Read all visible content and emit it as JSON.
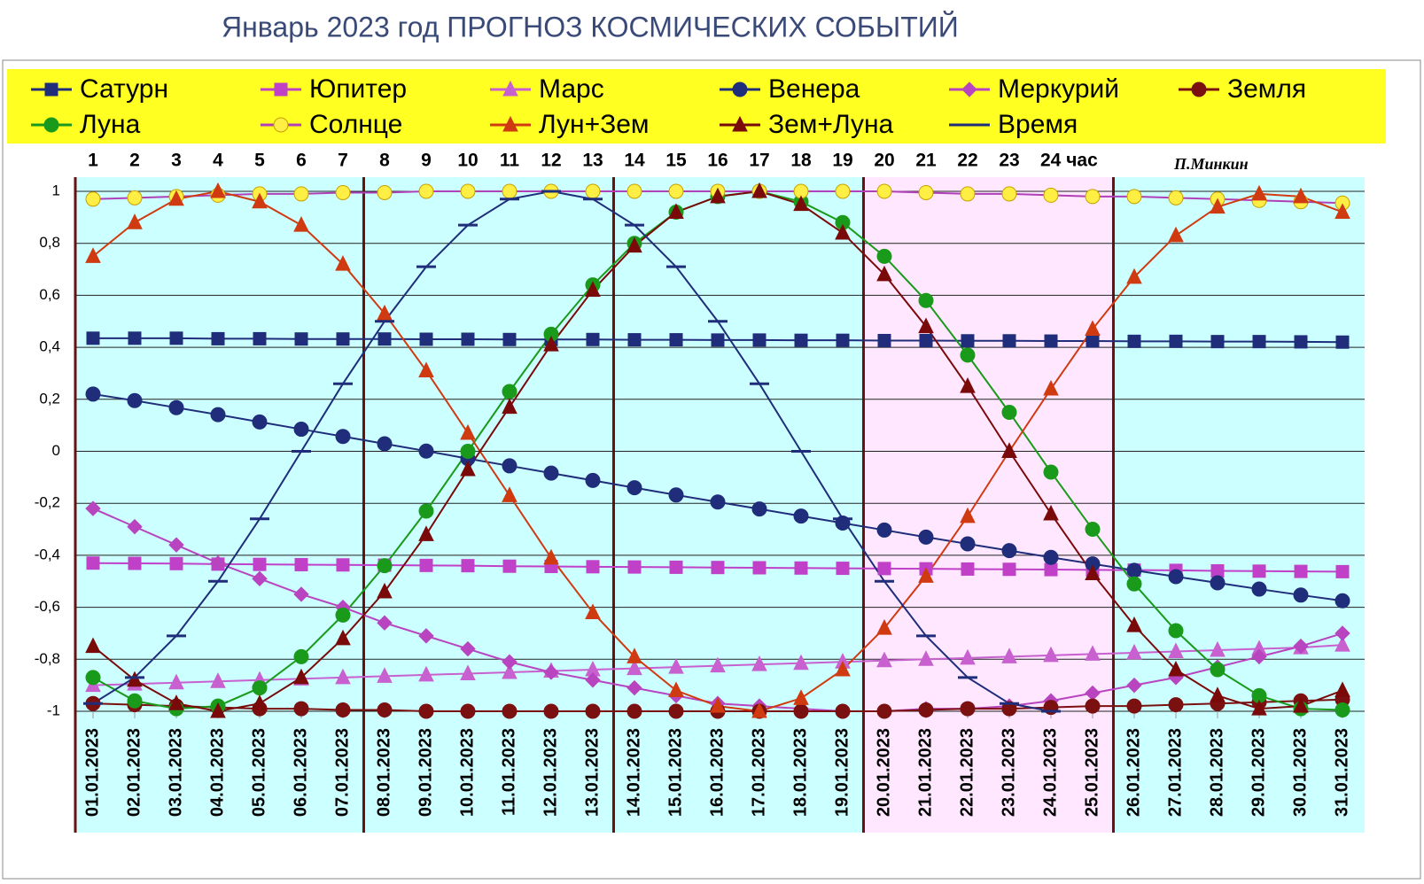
{
  "chart_data": {
    "type": "line",
    "title": "Январь 2023 год ПРОГНОЗ КОСМИЧЕСКИХ СОБЫТИЙ",
    "author": "П.Минкин",
    "hours": [
      "1",
      "2",
      "3",
      "4",
      "5",
      "6",
      "7",
      "8",
      "9",
      "10",
      "11",
      "12",
      "13",
      "14",
      "15",
      "16",
      "17",
      "18",
      "19",
      "20",
      "21",
      "22",
      "23",
      "24 час"
    ],
    "categories": [
      "01.01.2023",
      "02.01.2023",
      "03.01.2023",
      "04.01.2023",
      "05.01.2023",
      "06.01.2023",
      "07.01.2023",
      "08.01.2023",
      "09.01.2023",
      "10.01.2023",
      "11.01.2023",
      "12.01.2023",
      "13.01.2023",
      "14.01.2023",
      "15.01.2023",
      "16.01.2023",
      "17.01.2023",
      "18.01.2023",
      "19.01.2023",
      "20.01.2023",
      "21.01.2023",
      "22.01.2023",
      "23.01.2023",
      "24.01.2023",
      "25.01.2023",
      "26.01.2023",
      "27.01.2023",
      "28.01.2023",
      "29.01.2023",
      "30.01.2023",
      "31.01.2023"
    ],
    "ylim": [
      -1,
      1
    ],
    "yticks": [
      -1,
      {
        "value": -0.8,
        "label": "-0,8"
      },
      {
        "value": -0.6,
        "label": "-0,6"
      },
      {
        "value": -0.4,
        "label": "-0,4"
      },
      {
        "value": -0.2,
        "label": "-0,2"
      },
      0,
      {
        "value": 0.2,
        "label": "0,2"
      },
      {
        "value": 0.4,
        "label": "0,4"
      },
      {
        "value": 0.6,
        "label": "0,6"
      },
      {
        "value": 0.8,
        "label": "0,8"
      },
      1
    ],
    "grid": true,
    "series": [
      {
        "name": "Сатурн",
        "color": "#1f2d7a",
        "marker": "square",
        "values": [
          0.435,
          0.435,
          0.435,
          0.433,
          0.433,
          0.432,
          0.432,
          0.432,
          0.431,
          0.431,
          0.43,
          0.43,
          0.43,
          0.429,
          0.429,
          0.428,
          0.428,
          0.427,
          0.427,
          0.426,
          0.426,
          0.425,
          0.425,
          0.424,
          0.424,
          0.423,
          0.423,
          0.422,
          0.422,
          0.421,
          0.42
        ]
      },
      {
        "name": "Юпитер",
        "color": "#c040c8",
        "marker": "square",
        "values": [
          -0.43,
          -0.431,
          -0.432,
          -0.434,
          -0.435,
          -0.436,
          -0.437,
          -0.438,
          -0.439,
          -0.44,
          -0.442,
          -0.443,
          -0.444,
          -0.445,
          -0.446,
          -0.447,
          -0.448,
          -0.449,
          -0.45,
          -0.451,
          -0.452,
          -0.453,
          -0.454,
          -0.455,
          -0.456,
          -0.457,
          -0.458,
          -0.46,
          -0.461,
          -0.462,
          -0.463
        ]
      },
      {
        "name": "Марс",
        "color": "#c860d0",
        "marker": "triangle",
        "values": [
          -0.9,
          -0.895,
          -0.89,
          -0.885,
          -0.88,
          -0.875,
          -0.87,
          -0.865,
          -0.86,
          -0.855,
          -0.85,
          -0.845,
          -0.84,
          -0.835,
          -0.83,
          -0.825,
          -0.82,
          -0.815,
          -0.81,
          -0.805,
          -0.8,
          -0.795,
          -0.79,
          -0.785,
          -0.78,
          -0.775,
          -0.77,
          -0.765,
          -0.76,
          -0.755,
          -0.745
        ]
      },
      {
        "name": "Венера",
        "color": "#1f2d7a",
        "marker": "circle",
        "values": [
          0.22,
          0.195,
          0.168,
          0.141,
          0.113,
          0.085,
          0.057,
          0.029,
          0.001,
          -0.028,
          -0.056,
          -0.084,
          -0.112,
          -0.14,
          -0.168,
          -0.195,
          -0.222,
          -0.249,
          -0.276,
          -0.303,
          -0.33,
          -0.356,
          -0.382,
          -0.408,
          -0.433,
          -0.458,
          -0.482,
          -0.506,
          -0.53,
          -0.553,
          -0.575
        ]
      },
      {
        "name": "Меркурий",
        "color": "#b844c0",
        "marker": "diamond",
        "values": [
          -0.22,
          -0.29,
          -0.36,
          -0.43,
          -0.49,
          -0.55,
          -0.6,
          -0.66,
          -0.71,
          -0.76,
          -0.81,
          -0.85,
          -0.88,
          -0.91,
          -0.94,
          -0.97,
          -0.98,
          -0.99,
          -1.0,
          -1.0,
          -0.99,
          -0.99,
          -0.98,
          -0.96,
          -0.93,
          -0.9,
          -0.87,
          -0.83,
          -0.79,
          -0.75,
          -0.7
        ]
      },
      {
        "name": "Земля",
        "color": "#7a1010",
        "marker": "circle",
        "values": [
          -0.97,
          -0.975,
          -0.98,
          -0.985,
          -0.99,
          -0.99,
          -0.995,
          -0.995,
          -1.0,
          -1.0,
          -1.0,
          -1.0,
          -1.0,
          -1.0,
          -1.0,
          -1.0,
          -1.0,
          -1.0,
          -1.0,
          -1.0,
          -0.995,
          -0.99,
          -0.99,
          -0.985,
          -0.98,
          -0.98,
          -0.975,
          -0.97,
          -0.965,
          -0.96,
          -0.955
        ]
      },
      {
        "name": "Луна",
        "color": "#1a9a1a",
        "marker": "circle",
        "values": [
          -0.87,
          -0.96,
          -0.99,
          -0.98,
          -0.91,
          -0.79,
          -0.63,
          -0.44,
          -0.23,
          0.0,
          0.23,
          0.45,
          0.64,
          0.8,
          0.92,
          0.98,
          1.0,
          0.96,
          0.88,
          0.75,
          0.58,
          0.37,
          0.15,
          -0.08,
          -0.3,
          -0.51,
          -0.69,
          -0.84,
          -0.94,
          -0.99,
          -0.995
        ]
      },
      {
        "name": "Солнце",
        "color": "#ffee44",
        "marker": "circle",
        "values": [
          0.97,
          0.975,
          0.98,
          0.985,
          0.99,
          0.99,
          0.995,
          0.995,
          1.0,
          1.0,
          1.0,
          1.0,
          1.0,
          1.0,
          1.0,
          1.0,
          1.0,
          1.0,
          1.0,
          1.0,
          0.995,
          0.99,
          0.99,
          0.985,
          0.98,
          0.98,
          0.975,
          0.97,
          0.965,
          0.96,
          0.955
        ]
      },
      {
        "name": "Лун+Зем",
        "color": "#d03a10",
        "marker": "triangle",
        "values": [
          0.75,
          0.88,
          0.97,
          1.0,
          0.96,
          0.87,
          0.72,
          0.53,
          0.31,
          0.07,
          -0.17,
          -0.41,
          -0.62,
          -0.79,
          -0.92,
          -0.98,
          -1.0,
          -0.95,
          -0.84,
          -0.68,
          -0.48,
          -0.25,
          0.0,
          0.24,
          0.47,
          0.67,
          0.83,
          0.94,
          0.99,
          0.98,
          0.92
        ]
      },
      {
        "name": "Зем+Луна",
        "color": "#7a0a0a",
        "marker": "triangle",
        "values": [
          -0.75,
          -0.88,
          -0.97,
          -1.0,
          -0.97,
          -0.87,
          -0.72,
          -0.54,
          -0.32,
          -0.07,
          0.17,
          0.41,
          0.62,
          0.79,
          0.92,
          0.98,
          1.0,
          0.95,
          0.84,
          0.68,
          0.48,
          0.25,
          0.0,
          -0.24,
          -0.47,
          -0.67,
          -0.84,
          -0.94,
          -0.99,
          -0.98,
          -0.92
        ]
      },
      {
        "name": "Время",
        "color": "#1f2d7a",
        "marker": "dash",
        "values": [
          -0.97,
          -0.87,
          -0.71,
          -0.5,
          -0.26,
          0.0,
          0.26,
          0.5,
          0.71,
          0.87,
          0.97,
          1.0,
          0.97,
          0.87,
          0.71,
          0.5,
          0.26,
          0.0,
          -0.26,
          -0.5,
          -0.71,
          -0.87,
          -0.97,
          -1.0,
          null,
          null,
          null,
          null,
          null,
          null,
          null
        ]
      }
    ]
  }
}
